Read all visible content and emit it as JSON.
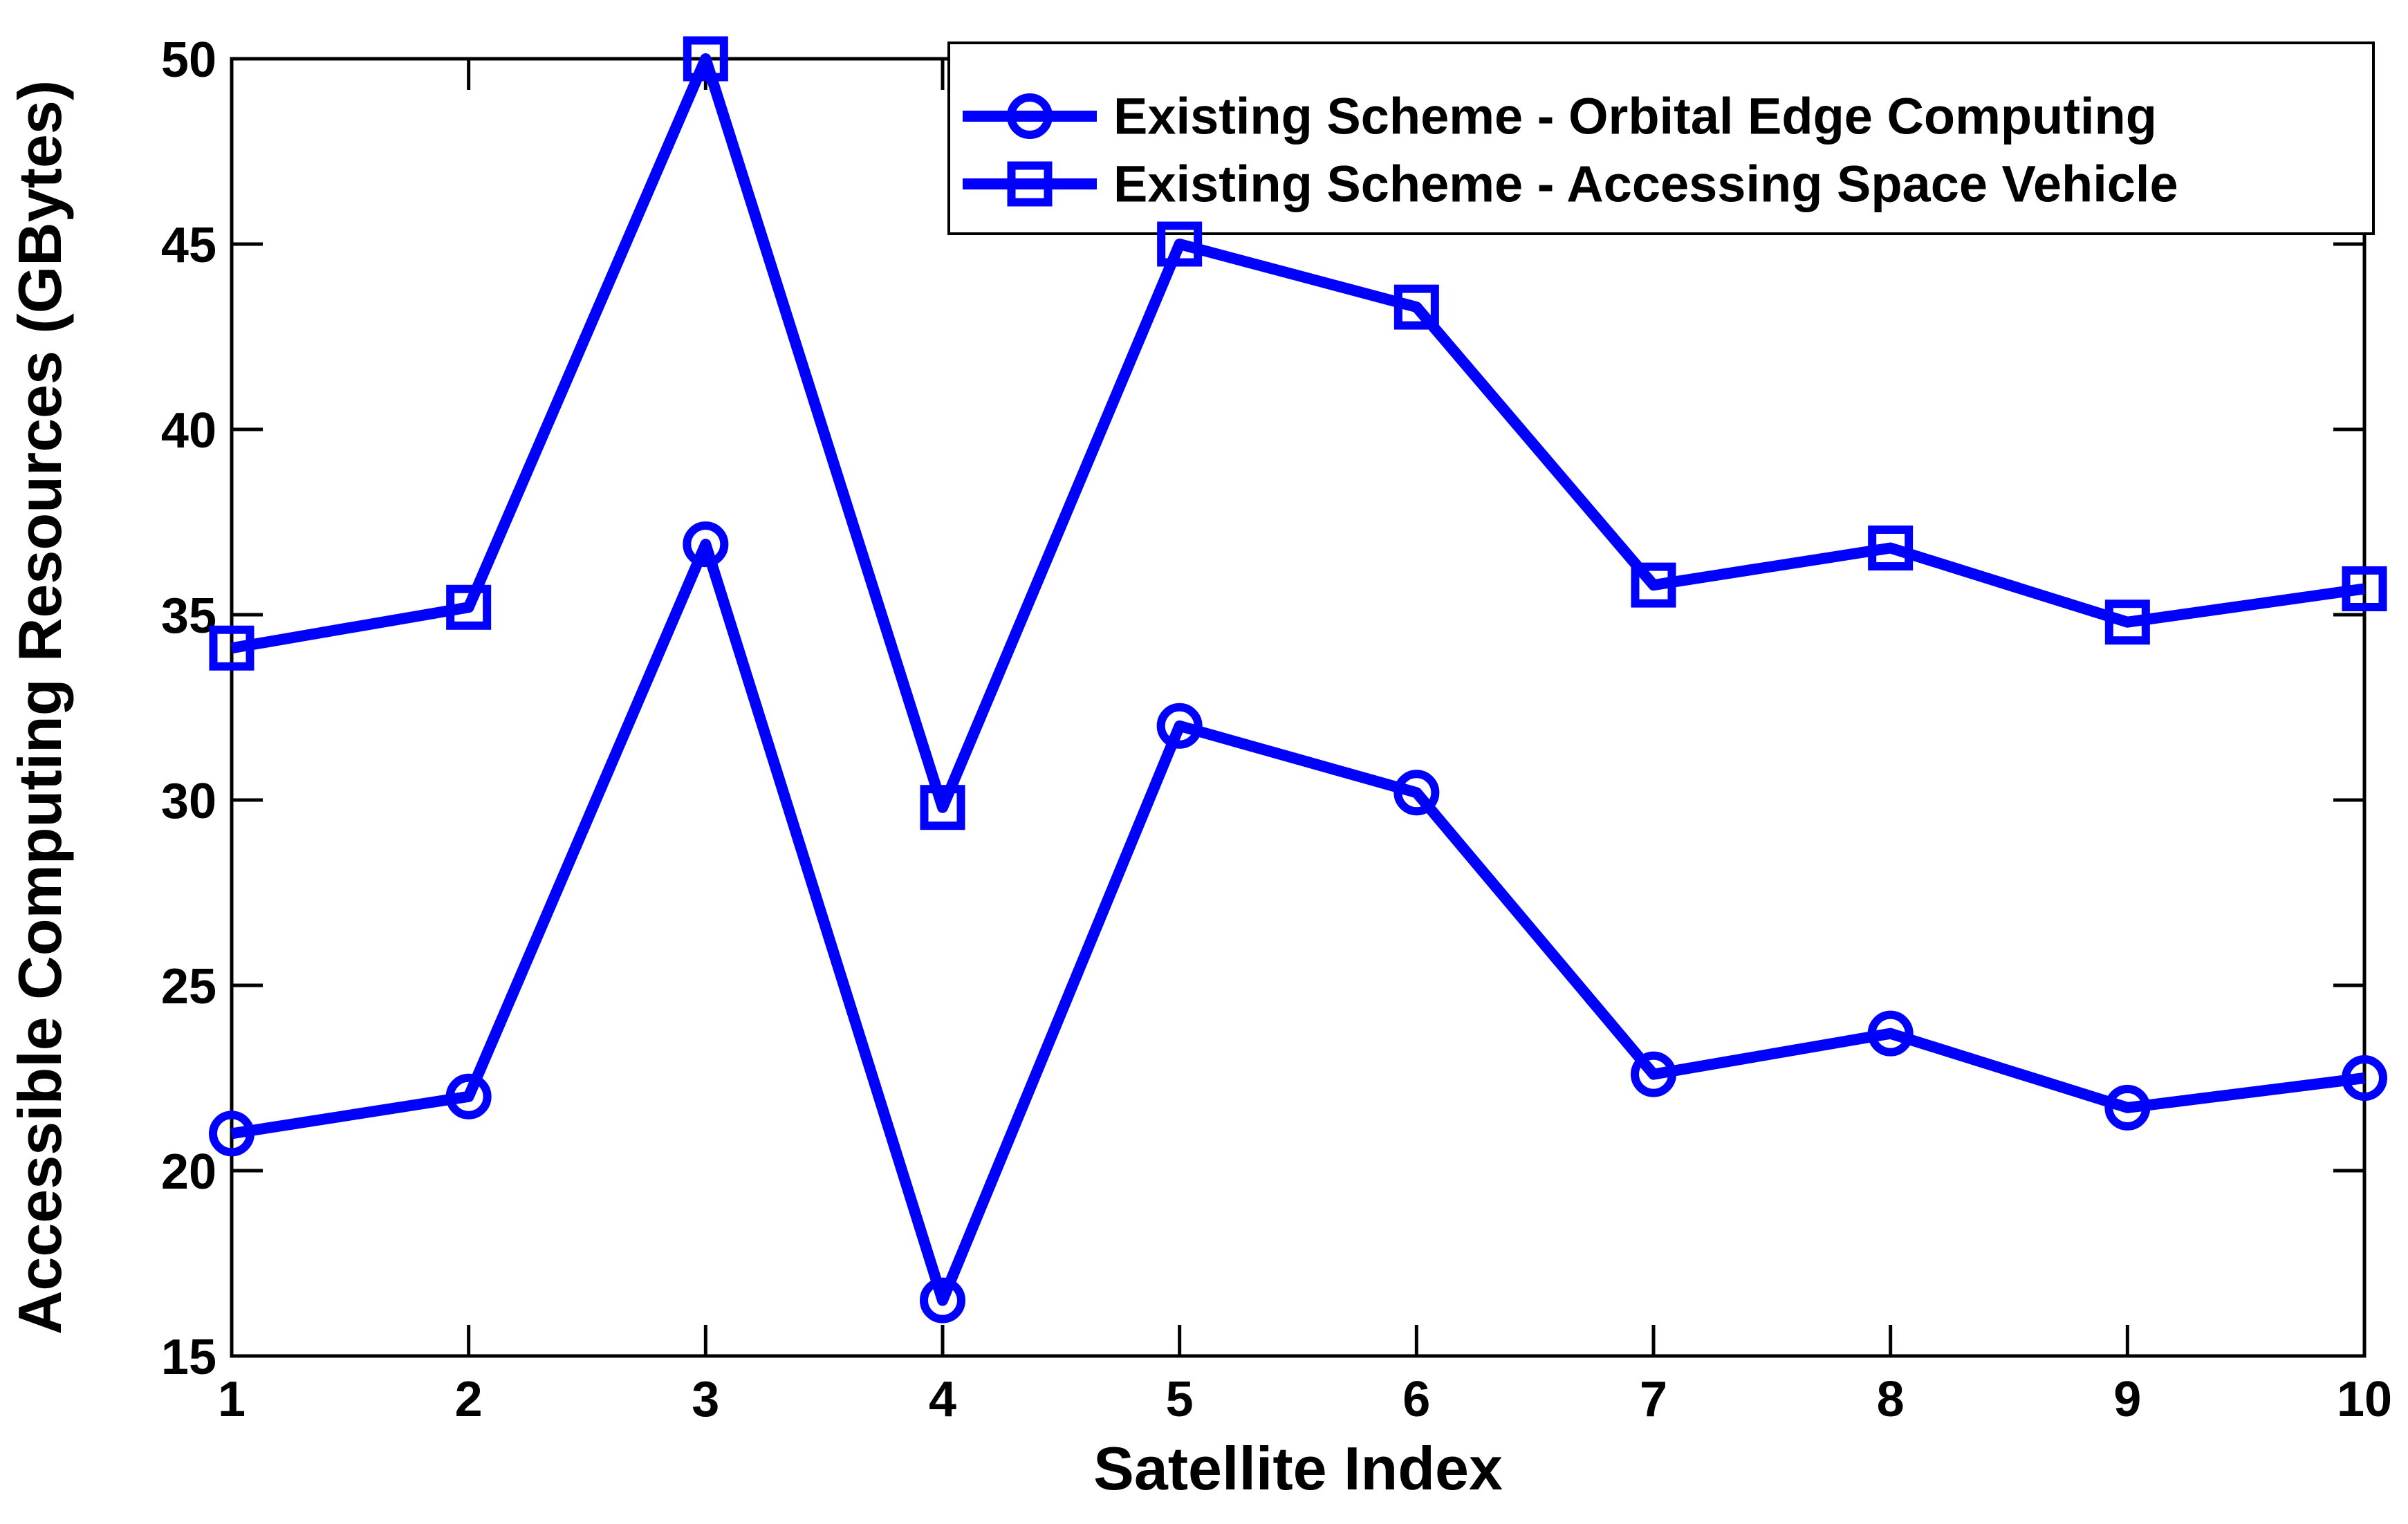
{
  "background": "#FFFFFF",
  "axis_color": "#000000",
  "chart_data": {
    "type": "line",
    "title": "",
    "xlabel": "Satellite Index",
    "ylabel": "Accessible Computing Resources (GBytes)",
    "x": [
      1,
      2,
      3,
      4,
      5,
      6,
      7,
      8,
      9,
      10
    ],
    "xlim": [
      1,
      10
    ],
    "ylim": [
      15,
      50
    ],
    "x_ticks": [
      1,
      2,
      3,
      4,
      5,
      6,
      7,
      8,
      9,
      10
    ],
    "y_ticks": [
      15,
      20,
      25,
      30,
      35,
      40,
      45,
      50
    ],
    "grid": false,
    "legend_position": "top-right",
    "series": [
      {
        "name": "Existing Scheme - Orbital Edge Computing",
        "marker": "circle",
        "color": "#0000FF",
        "values": [
          21.0,
          22.0,
          36.9,
          16.5,
          32.0,
          30.2,
          22.6,
          23.7,
          21.7,
          22.5
        ]
      },
      {
        "name": "Existing Scheme - Accessing Space Vehicle",
        "marker": "square",
        "color": "#0000FF",
        "values": [
          34.1,
          35.2,
          50.0,
          29.8,
          45.0,
          43.3,
          35.8,
          36.8,
          34.8,
          35.7
        ]
      }
    ]
  }
}
